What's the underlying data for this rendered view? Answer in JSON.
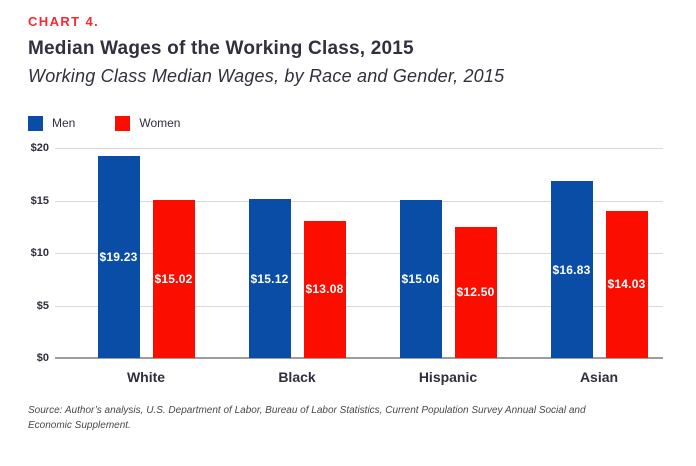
{
  "header": {
    "kicker": "CHART 4.",
    "title": "Median Wages of the Working Class, 2015",
    "subtitle": "Working Class Median Wages, by Race and Gender, 2015"
  },
  "legend": [
    {
      "label": "Men",
      "color": "#0a4da6"
    },
    {
      "label": "Women",
      "color": "#fb0d00"
    }
  ],
  "colors": {
    "men_blue": "#0a4da6",
    "women_red": "#fb0d00",
    "kicker_red": "#f8282c",
    "heading_text": "#30303e",
    "gridline": "#d9d9d9",
    "axis_line": "#9c9c9c"
  },
  "chart_data": {
    "type": "bar",
    "title": "Median Wages of the Working Class, 2015",
    "subtitle": "Working Class Median Wages, by Race and Gender, 2015",
    "categories": [
      "White",
      "Black",
      "Hispanic",
      "Asian"
    ],
    "series": [
      {
        "name": "Men",
        "color": "#0a4da6",
        "values": [
          19.23,
          15.12,
          15.06,
          16.83
        ],
        "labels": [
          "$19.23",
          "$15.12",
          "$15.06",
          "$16.83"
        ]
      },
      {
        "name": "Women",
        "color": "#fb0d00",
        "values": [
          15.02,
          13.08,
          12.5,
          14.03
        ],
        "labels": [
          "$15.02",
          "$13.08",
          "$12.50",
          "$14.03"
        ]
      }
    ],
    "xlabel": "",
    "ylabel": "",
    "ylim": [
      0,
      20
    ],
    "yticks": [
      0,
      5,
      10,
      15,
      20
    ],
    "ytick_labels": [
      "$0",
      "$5",
      "$10",
      "$15",
      "$20"
    ],
    "grid": true,
    "legend_position": "top-left"
  },
  "source": {
    "text": "Source: Author’s analysis, U.S. Department of Labor, Bureau of Labor Statistics, Current Population Survey Annual Social and Economic Supplement."
  }
}
